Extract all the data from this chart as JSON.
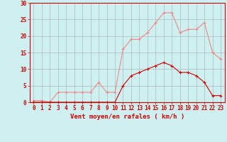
{
  "x": [
    0,
    1,
    2,
    3,
    4,
    5,
    6,
    7,
    8,
    9,
    10,
    11,
    12,
    13,
    14,
    15,
    16,
    17,
    18,
    19,
    20,
    21,
    22,
    23
  ],
  "y_moyen": [
    0,
    0,
    0,
    0,
    0,
    0,
    0,
    0,
    0,
    0,
    0,
    5,
    8,
    9,
    10,
    11,
    12,
    11,
    9,
    9,
    8,
    6,
    2,
    2
  ],
  "y_rafales": [
    0.5,
    0.5,
    0,
    3,
    3,
    3,
    3,
    3,
    6,
    3,
    3,
    16,
    19,
    19,
    21,
    24,
    27,
    27,
    21,
    22,
    22,
    24,
    15,
    13
  ],
  "bg_color": "#cff0f0",
  "grid_color": "#aaaaaa",
  "line_color_moyen": "#cc0000",
  "line_color_rafales": "#ee8888",
  "xlabel": "Vent moyen/en rafales ( km/h )",
  "ylim": [
    0,
    30
  ],
  "xlim_min": -0.5,
  "xlim_max": 23.5,
  "yticks": [
    0,
    5,
    10,
    15,
    20,
    25,
    30
  ],
  "xticks": [
    0,
    1,
    2,
    3,
    4,
    5,
    6,
    7,
    8,
    9,
    10,
    11,
    12,
    13,
    14,
    15,
    16,
    17,
    18,
    19,
    20,
    21,
    22,
    23
  ]
}
